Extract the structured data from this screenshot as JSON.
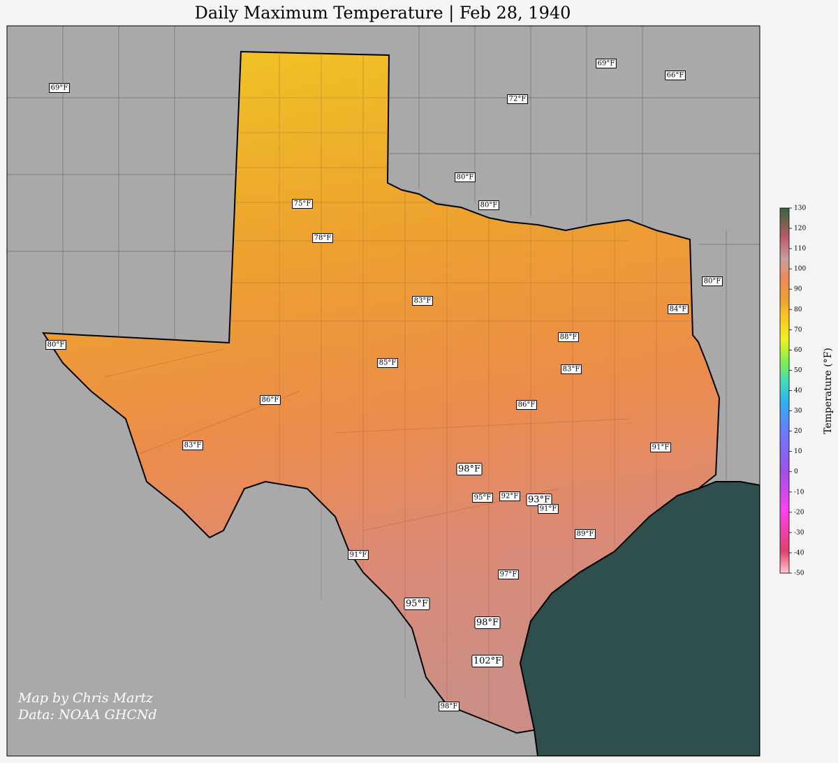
{
  "title": "Daily Maximum Temperature | Feb 28, 1940",
  "stations": [
    "69°F",
    "69°F",
    "66°F",
    "72°F",
    "80°F",
    "80°F",
    "75°F",
    "78°F",
    "80°F",
    "83°F",
    "84°F",
    "88°F",
    "80°F",
    "85°F",
    "83°F",
    "86°F",
    "86°F",
    "83°F",
    "91°F",
    "98°F",
    "95°F",
    "92°F",
    "93°F",
    "91°F",
    "89°F",
    "91°F",
    "97°F",
    "95°F",
    "98°F",
    "102°F",
    "98°F"
  ],
  "credits": [
    "Map by Chris Martz",
    "Data: NOAA GHCNd"
  ],
  "colorbar": {
    "label": "Temperature (°F)",
    "lim": [
      -50,
      130
    ],
    "ticks": [
      -50,
      -40,
      -30,
      -20,
      -10,
      0,
      10,
      20,
      30,
      40,
      50,
      60,
      70,
      80,
      90,
      100,
      110,
      120,
      130
    ]
  }
}
